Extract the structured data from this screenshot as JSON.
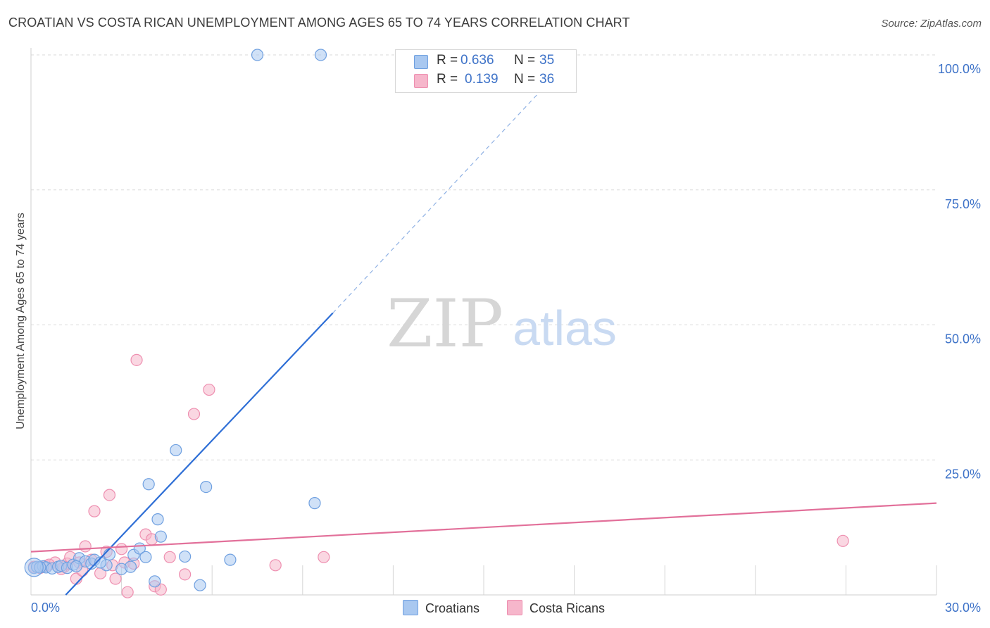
{
  "header": {
    "title": "CROATIAN VS COSTA RICAN UNEMPLOYMENT AMONG AGES 65 TO 74 YEARS CORRELATION CHART",
    "source": "Source: ZipAtlas.com"
  },
  "legend_top": {
    "croatians": {
      "r_label": "R =",
      "r_value": "0.636",
      "n_label": "N =",
      "n_value": "35"
    },
    "costa_ricans": {
      "r_label": "R =",
      "r_value": "0.139",
      "n_label": "N =",
      "n_value": "36"
    }
  },
  "legend_bottom": {
    "croatians": "Croatians",
    "costa_ricans": "Costa Ricans"
  },
  "watermark": {
    "zip": "ZIP",
    "atlas": "atlas"
  },
  "colors": {
    "blue_fill": "#a9c8f0",
    "blue_stroke": "#6fa0e0",
    "blue_line": "#2f6fd6",
    "pink_fill": "#f6b6cb",
    "pink_stroke": "#ee8fb0",
    "pink_line": "#e2709a",
    "axis_text": "#3d72c8",
    "grid": "#d9d9d9"
  },
  "chart_data": {
    "type": "scatter",
    "title": "CROATIAN VS COSTA RICAN UNEMPLOYMENT AMONG AGES 65 TO 74 YEARS CORRELATION CHART",
    "xlabel": "",
    "ylabel": "Unemployment Among Ages 65 to 74 years",
    "xlim": [
      0,
      30
    ],
    "ylim": [
      0,
      100
    ],
    "x_tick_labels": [
      "0.0%",
      "30.0%"
    ],
    "y_tick_values": [
      25,
      50,
      75,
      100
    ],
    "y_tick_labels": [
      "25.0%",
      "50.0%",
      "75.0%",
      "100.0%"
    ],
    "series": [
      {
        "name": "Croatians",
        "r": 0.636,
        "n": 35,
        "points": [
          [
            0.1,
            5.0
          ],
          [
            0.2,
            5.2
          ],
          [
            0.4,
            5.3
          ],
          [
            0.5,
            5.1
          ],
          [
            0.7,
            4.9
          ],
          [
            0.9,
            5.2
          ],
          [
            1.0,
            5.4
          ],
          [
            1.2,
            5.0
          ],
          [
            1.4,
            5.6
          ],
          [
            1.6,
            6.8
          ],
          [
            1.8,
            6.2
          ],
          [
            2.0,
            5.8
          ],
          [
            2.1,
            6.5
          ],
          [
            2.5,
            5.5
          ],
          [
            2.6,
            7.5
          ],
          [
            3.0,
            4.8
          ],
          [
            3.3,
            5.2
          ],
          [
            3.4,
            7.4
          ],
          [
            3.6,
            8.6
          ],
          [
            3.8,
            7.0
          ],
          [
            3.9,
            20.5
          ],
          [
            4.1,
            2.5
          ],
          [
            4.2,
            14.0
          ],
          [
            4.3,
            10.8
          ],
          [
            4.8,
            26.8
          ],
          [
            5.1,
            7.1
          ],
          [
            5.6,
            1.8
          ],
          [
            5.8,
            20.0
          ],
          [
            6.6,
            6.5
          ],
          [
            7.5,
            100.0
          ],
          [
            9.6,
            100.0
          ],
          [
            9.4,
            17.0
          ],
          [
            1.5,
            5.3
          ],
          [
            2.3,
            6.0
          ],
          [
            0.3,
            5.1
          ]
        ],
        "trend": {
          "x_start": 1.15,
          "y_start": 0,
          "x_solid_end": 10.0,
          "y_solid_end": 52.2,
          "x_dash_end": 18.0,
          "y_dash_end": 100.0
        }
      },
      {
        "name": "Costa Ricans",
        "r": 0.139,
        "n": 36,
        "points": [
          [
            0.1,
            5.2
          ],
          [
            0.3,
            5.0
          ],
          [
            0.5,
            5.4
          ],
          [
            0.8,
            6.0
          ],
          [
            1.1,
            5.2
          ],
          [
            1.2,
            5.8
          ],
          [
            1.3,
            7.0
          ],
          [
            1.5,
            3.0
          ],
          [
            1.6,
            6.0
          ],
          [
            1.7,
            4.5
          ],
          [
            1.8,
            9.0
          ],
          [
            2.0,
            6.5
          ],
          [
            2.1,
            15.5
          ],
          [
            2.3,
            4.0
          ],
          [
            2.5,
            8.0
          ],
          [
            2.6,
            18.5
          ],
          [
            2.8,
            3.0
          ],
          [
            3.0,
            8.5
          ],
          [
            3.1,
            6.0
          ],
          [
            3.2,
            0.5
          ],
          [
            3.5,
            43.5
          ],
          [
            3.8,
            11.2
          ],
          [
            4.0,
            10.3
          ],
          [
            4.1,
            1.6
          ],
          [
            4.3,
            1.0
          ],
          [
            4.6,
            7.0
          ],
          [
            5.1,
            3.8
          ],
          [
            5.4,
            33.5
          ],
          [
            5.9,
            38.0
          ],
          [
            8.1,
            5.5
          ],
          [
            9.7,
            7.0
          ],
          [
            26.9,
            10.0
          ],
          [
            0.6,
            5.6
          ],
          [
            1.0,
            4.8
          ],
          [
            2.7,
            5.5
          ],
          [
            3.4,
            5.8
          ]
        ],
        "trend": {
          "x_start": 0,
          "y_start": 8.0,
          "x_end": 30.0,
          "y_end": 17.0
        }
      }
    ]
  }
}
